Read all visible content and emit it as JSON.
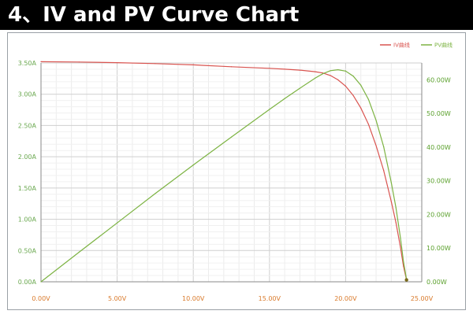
{
  "header": {
    "title": "4、IV and PV Curve Chart",
    "background": "#000000",
    "text_color": "#ffffff"
  },
  "chart_data": {
    "type": "line",
    "title": "",
    "xlabel": "",
    "ylabel": "",
    "y2label": "",
    "grid": true,
    "legend_position": "top-right",
    "xlim": [
      0,
      25
    ],
    "ylim": [
      0,
      3.5
    ],
    "y2lim": [
      0,
      65
    ],
    "x_ticks": [
      "0.00V",
      "5.00V",
      "10.00V",
      "15.00V",
      "20.00V",
      "25.00V"
    ],
    "y_ticks": [
      "0.00A",
      "0.50A",
      "1.00A",
      "1.50A",
      "2.00A",
      "2.50A",
      "3.00A",
      "3.50A"
    ],
    "y2_ticks": [
      "0.00W",
      "10.00W",
      "20.00W",
      "30.00W",
      "40.00W",
      "50.00W",
      "60.00W"
    ],
    "series": [
      {
        "name": "IV曲线",
        "axis": "left",
        "color": "#d9534f",
        "x": [
          0,
          2.5,
          5,
          7.5,
          10,
          12.5,
          15,
          16,
          17,
          18,
          18.5,
          19,
          19.5,
          20,
          20.5,
          21,
          21.5,
          22,
          22.5,
          23,
          23.3,
          23.6,
          23.8,
          24.0
        ],
        "y": [
          3.52,
          3.515,
          3.505,
          3.49,
          3.47,
          3.44,
          3.415,
          3.4,
          3.385,
          3.36,
          3.34,
          3.3,
          3.23,
          3.13,
          2.98,
          2.78,
          2.52,
          2.18,
          1.78,
          1.28,
          0.95,
          0.55,
          0.25,
          0.03
        ]
      },
      {
        "name": "PV曲线",
        "axis": "right",
        "color": "#7cb342",
        "x": [
          0,
          2.5,
          5,
          7.5,
          10,
          12.5,
          15,
          16,
          17,
          18,
          18.5,
          19,
          19.5,
          20,
          20.5,
          21,
          21.5,
          22,
          22.5,
          23,
          23.3,
          23.6,
          23.8,
          24.0
        ],
        "y": [
          0,
          8.8,
          17.5,
          26.2,
          34.7,
          43.0,
          51.2,
          54.4,
          57.5,
          60.5,
          61.8,
          62.7,
          63.0,
          62.6,
          61.1,
          58.4,
          54.2,
          48.0,
          40.1,
          29.4,
          22.1,
          13.0,
          6.0,
          0.7
        ]
      }
    ]
  }
}
